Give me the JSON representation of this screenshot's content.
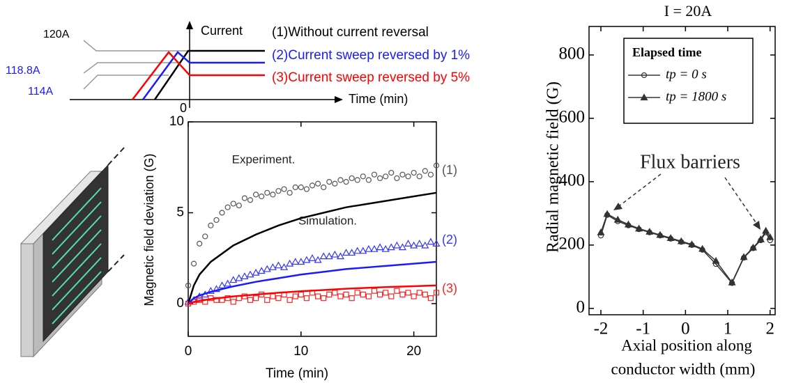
{
  "schematic": {
    "current_axis": "Current",
    "time_axis": "Time (min)",
    "origin": "0",
    "levels": [
      "120A",
      "118.8A",
      "114A"
    ],
    "legend": [
      "(1)Without current reversal",
      "(2)Current sweep reversed by 1%",
      "(3)Current sweep reversed by 5%"
    ]
  },
  "chart_data": [
    {
      "type": "scatter",
      "xlabel": "Time (min)",
      "ylabel": "Magnetic field deviation (G)",
      "xlim": [
        0,
        22
      ],
      "ylim": [
        -1.8,
        10
      ],
      "xticks": [
        0,
        10,
        20
      ],
      "yticks": [
        0,
        5,
        10
      ],
      "annotations": [
        "Experiment.",
        "Simulation."
      ],
      "x": [
        0,
        0.5,
        1,
        1.5,
        2,
        2.5,
        3,
        3.5,
        4,
        4.5,
        5,
        5.5,
        6,
        6.5,
        7,
        7.5,
        8,
        8.5,
        9,
        9.5,
        10,
        10.5,
        11,
        11.5,
        12,
        12.5,
        13,
        13.5,
        14,
        14.5,
        15,
        15.5,
        16,
        16.5,
        17,
        17.5,
        18,
        18.5,
        19,
        19.5,
        20,
        20.5,
        21,
        21.5,
        22
      ],
      "series": [
        {
          "name": "(1)",
          "color": "#555555",
          "marker": "circle",
          "values": [
            1.0,
            2.2,
            3.3,
            3.7,
            4.3,
            4.6,
            5.0,
            5.3,
            5.5,
            5.4,
            5.8,
            5.7,
            6.0,
            5.9,
            6.1,
            6.0,
            6.2,
            6.3,
            6.1,
            6.4,
            6.4,
            6.3,
            6.5,
            6.6,
            6.4,
            6.7,
            6.6,
            6.8,
            6.7,
            6.9,
            6.8,
            7.0,
            6.8,
            7.1,
            6.9,
            7.0,
            7.2,
            6.9,
            7.1,
            7.0,
            7.2,
            7.0,
            7.3,
            7.1,
            7.6
          ]
        },
        {
          "name": "(2)",
          "color": "#3333ff",
          "marker": "triangle",
          "values": [
            0.1,
            0.2,
            0.4,
            0.5,
            0.7,
            0.8,
            1.0,
            1.1,
            1.3,
            1.4,
            1.5,
            1.6,
            1.7,
            1.8,
            1.9,
            2.0,
            2.1,
            2.0,
            2.2,
            2.3,
            2.3,
            2.4,
            2.5,
            2.4,
            2.6,
            2.6,
            2.7,
            2.6,
            2.8,
            2.8,
            2.9,
            2.9,
            3.0,
            3.0,
            3.1,
            3.0,
            3.1,
            3.2,
            3.1,
            3.3,
            3.2,
            3.3,
            3.2,
            3.4,
            3.3
          ]
        },
        {
          "name": "(3)",
          "color": "#ff2222",
          "marker": "square",
          "values": [
            0.0,
            0.1,
            0.2,
            0.1,
            0.3,
            0.2,
            0.2,
            0.3,
            0.1,
            0.3,
            0.4,
            0.2,
            0.3,
            0.5,
            0.2,
            0.4,
            0.3,
            0.5,
            0.2,
            0.4,
            0.5,
            0.3,
            0.6,
            0.4,
            0.3,
            0.5,
            0.6,
            0.4,
            0.5,
            0.3,
            0.6,
            0.5,
            0.4,
            0.7,
            0.5,
            0.6,
            0.4,
            0.7,
            0.5,
            0.6,
            0.4,
            0.6,
            0.5,
            0.3,
            0.6
          ]
        },
        {
          "type": "line",
          "color": "#000000",
          "x": [
            0,
            0.5,
            1,
            2,
            4,
            6,
            8,
            10,
            12,
            14,
            16,
            18,
            20,
            22
          ],
          "values": [
            0,
            1.0,
            1.6,
            2.3,
            3.2,
            3.8,
            4.3,
            4.7,
            5.0,
            5.3,
            5.5,
            5.7,
            5.9,
            6.1
          ]
        },
        {
          "type": "line",
          "color": "#1a1aff",
          "x": [
            0,
            0.5,
            1,
            2,
            4,
            6,
            8,
            10,
            12,
            14,
            16,
            18,
            20,
            22
          ],
          "values": [
            0,
            0.3,
            0.45,
            0.65,
            0.95,
            1.2,
            1.4,
            1.6,
            1.75,
            1.9,
            2.0,
            2.1,
            2.2,
            2.3
          ]
        },
        {
          "type": "line",
          "color": "#ff0000",
          "x": [
            0,
            0.5,
            1,
            2,
            4,
            6,
            8,
            10,
            12,
            14,
            16,
            18,
            20,
            22
          ],
          "values": [
            0,
            0.1,
            0.15,
            0.25,
            0.4,
            0.5,
            0.6,
            0.68,
            0.75,
            0.82,
            0.87,
            0.92,
            0.96,
            1.0
          ]
        }
      ]
    },
    {
      "type": "line",
      "title": "I = 20A",
      "xlabel": [
        "Axial position along",
        "conductor width (mm)"
      ],
      "ylabel": "Radial magnetic field (G)",
      "xlim": [
        -2.28,
        2.12
      ],
      "ylim": [
        -20,
        890
      ],
      "xticks": [
        -2,
        -1,
        0,
        1,
        2
      ],
      "yticks": [
        0,
        200,
        400,
        600,
        800
      ],
      "legend_title": "Elapsed time",
      "annotations": [
        "Flux barriers"
      ],
      "x": [
        -2,
        -1.85,
        -1.6,
        -1.35,
        -1.1,
        -0.85,
        -0.6,
        -0.35,
        -0.1,
        0.15,
        0.4,
        0.72,
        1.1,
        1.38,
        1.6,
        1.78,
        1.9,
        2.0
      ],
      "series": [
        {
          "name": "tp = 0 s",
          "color": "#333333",
          "marker": "circle",
          "values": [
            230,
            295,
            275,
            262,
            250,
            240,
            230,
            220,
            210,
            200,
            185,
            140,
            80,
            160,
            190,
            215,
            240,
            215
          ]
        },
        {
          "name": "tp = 1800 s",
          "color": "#333333",
          "marker": "triangle-filled",
          "values": [
            240,
            298,
            280,
            265,
            252,
            242,
            232,
            222,
            212,
            202,
            188,
            150,
            82,
            162,
            192,
            218,
            245,
            225
          ]
        }
      ]
    }
  ]
}
